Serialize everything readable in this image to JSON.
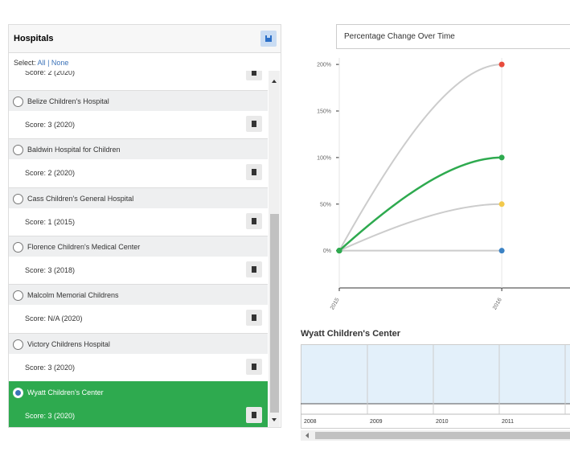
{
  "panel": {
    "title": "Hospitals",
    "select_label": "Select:",
    "select_all": "All",
    "select_separator": "|",
    "select_none": "None",
    "partial_score": "Score: 2 (2020)",
    "hospitals": [
      {
        "name": "Belize Children's Hospital",
        "score": "Score: 3 (2020)"
      },
      {
        "name": "Baldwin Hospital for Children",
        "score": "Score: 2 (2020)"
      },
      {
        "name": "Cass Children's General Hospital",
        "score": "Score: 1 (2015)"
      },
      {
        "name": "Florence Children's Medical Center",
        "score": "Score: 3 (2018)"
      },
      {
        "name": "Malcolm Memorial Childrens",
        "score": "Score: N/A (2020)"
      },
      {
        "name": "Victory Childrens Hospital",
        "score": "Score: 3 (2020)"
      },
      {
        "name": "Wyatt Children's Center",
        "score": "Score: 3 (2020)"
      }
    ],
    "selected": 6
  },
  "metric_select": "Percentage Change Over Time",
  "chart_data": {
    "type": "line",
    "x": [
      2015,
      2016
    ],
    "xlim": [
      2015,
      2016.42
    ],
    "xticks": [
      2015,
      2016
    ],
    "ylim": [
      -40,
      207
    ],
    "yticks": [
      {
        "value": 0,
        "label": "0%"
      },
      {
        "value": 50,
        "label": "50%"
      },
      {
        "value": 100,
        "label": "100%"
      },
      {
        "value": 150,
        "label": "150%"
      },
      {
        "value": 200,
        "label": "200%"
      }
    ],
    "grid": true,
    "series": [
      {
        "color": "#cccccc",
        "marker_color": "#e84c3d",
        "values": [
          0,
          200
        ]
      },
      {
        "color": "#cccccc",
        "marker_color": "#f2c94c",
        "values": [
          0,
          50
        ]
      },
      {
        "color": "#cccccc",
        "marker_color": "#3b82c4",
        "values": [
          0,
          0
        ]
      },
      {
        "color": "#2eaa4f",
        "marker_color": "#2eaa4f",
        "values": [
          0,
          100
        ]
      }
    ]
  },
  "timeline": {
    "title": "Wyatt Children's Center",
    "years": [
      "2008",
      "2009",
      "2010",
      "2011"
    ]
  }
}
